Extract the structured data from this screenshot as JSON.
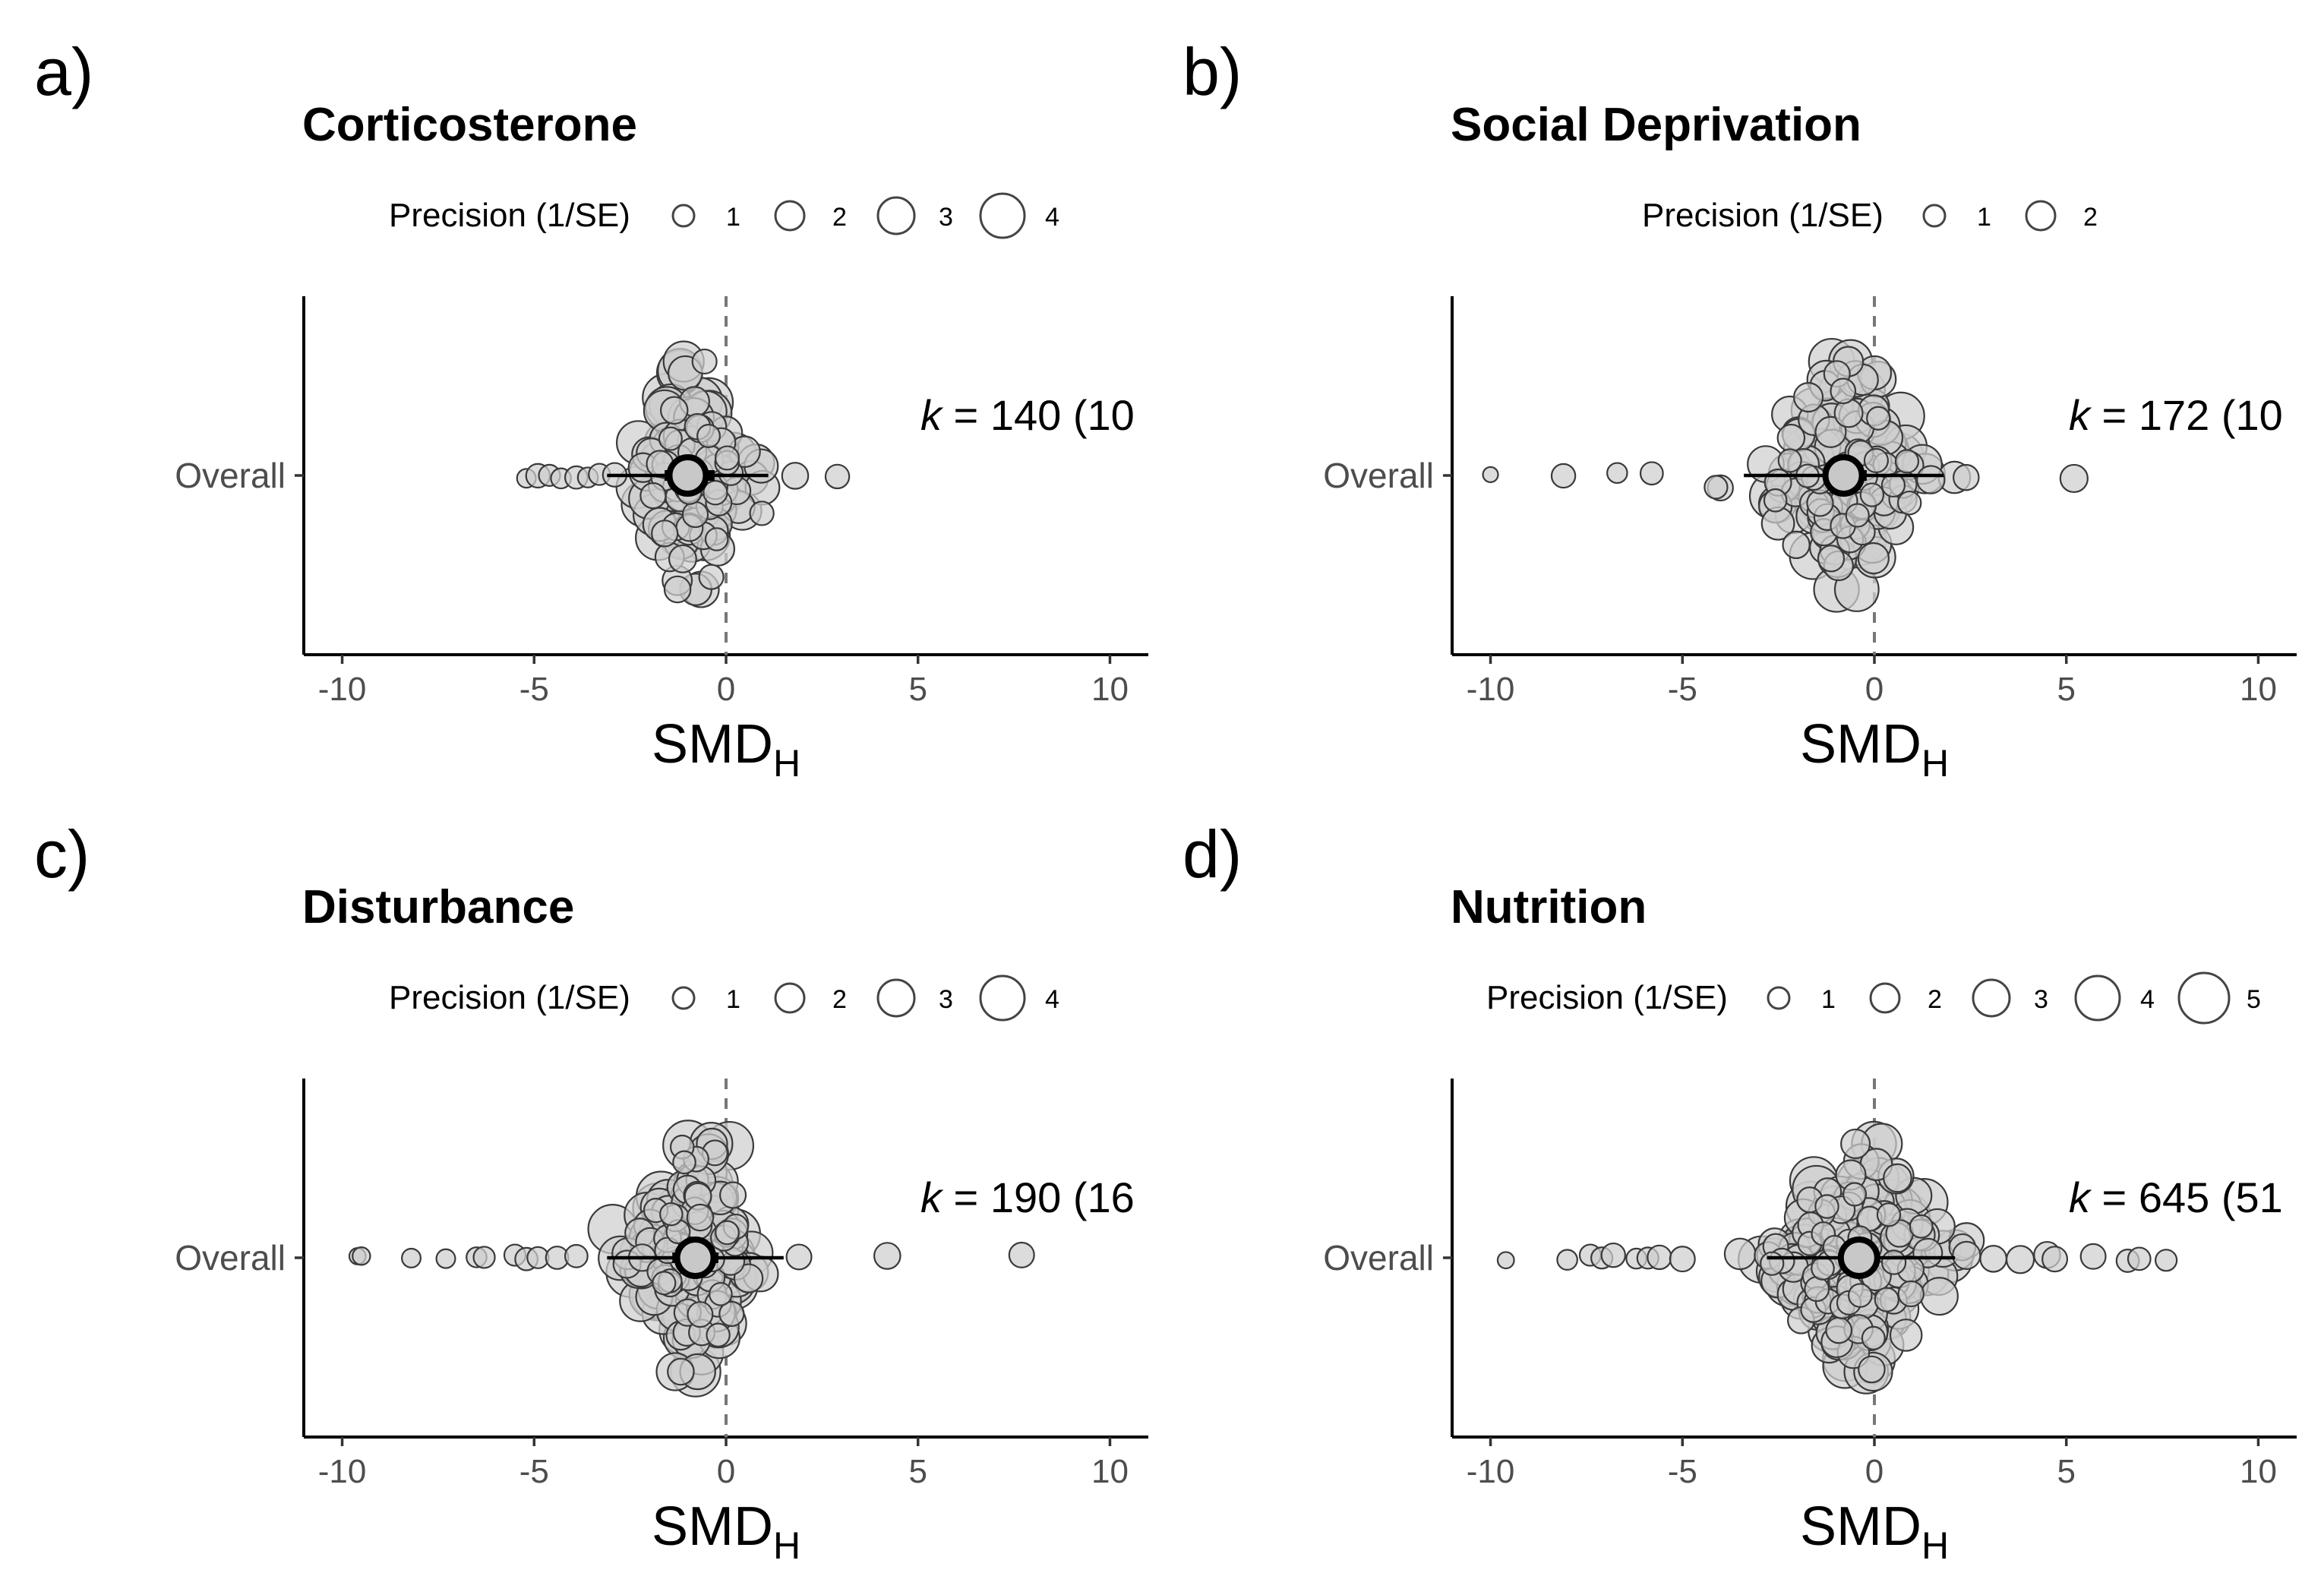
{
  "figure": {
    "ylabel_category": "Overall",
    "xaxis_title_main": "SMD",
    "xaxis_title_sub": "H",
    "legend_title": "Precision (1/SE)",
    "k_prefix": "k"
  },
  "chart_data": [
    {
      "id": "a",
      "type": "scatter",
      "panel_label": "a)",
      "title": "Corticosterone",
      "xlabel": "SMD_H",
      "xlim": [
        -11,
        11
      ],
      "xticks": [
        -10,
        -5,
        0,
        5,
        10
      ],
      "category": "Overall",
      "k_annotation": " = 140 (10",
      "legend_values": [
        "1",
        "2",
        "3",
        "4"
      ],
      "estimate": -1.0,
      "ci": [
        -1.6,
        -0.3
      ],
      "pi": [
        -3.1,
        1.1
      ],
      "n_effects": 140,
      "x_range": [
        -5.2,
        2.9
      ],
      "spread": 1.3,
      "outliers": [
        {
          "x": -5.2,
          "precision": 0.8
        },
        {
          "x": -4.9,
          "precision": 1.2
        },
        {
          "x": -4.6,
          "precision": 1.0
        },
        {
          "x": -4.3,
          "precision": 0.9
        },
        {
          "x": -3.9,
          "precision": 1.1
        },
        {
          "x": -3.6,
          "precision": 0.9
        },
        {
          "x": -3.3,
          "precision": 1.0
        },
        {
          "x": -2.9,
          "precision": 1.2
        },
        {
          "x": 1.8,
          "precision": 1.4
        },
        {
          "x": 2.9,
          "precision": 1.2
        }
      ]
    },
    {
      "id": "b",
      "type": "scatter",
      "panel_label": "b)",
      "title": "Social Deprivation",
      "xlabel": "SMD_H",
      "xlim": [
        -11,
        11
      ],
      "xticks": [
        -10,
        -5,
        0,
        5,
        10
      ],
      "category": "Overall",
      "k_annotation": " = 172 (10",
      "legend_values": [
        "1",
        "2"
      ],
      "estimate": -0.8,
      "ci": [
        -1.3,
        -0.2
      ],
      "pi": [
        -3.4,
        1.8
      ],
      "n_effects": 172,
      "x_range": [
        -10.0,
        5.2
      ],
      "spread": 1.8,
      "outliers": [
        {
          "x": -10.0,
          "precision": 0.5
        },
        {
          "x": -8.1,
          "precision": 1.2
        },
        {
          "x": -6.7,
          "precision": 0.9
        },
        {
          "x": -5.8,
          "precision": 1.1
        },
        {
          "x": 5.2,
          "precision": 1.5
        }
      ]
    },
    {
      "id": "c",
      "type": "scatter",
      "panel_label": "c)",
      "title": "Disturbance",
      "xlabel": "SMD_H",
      "xlim": [
        -11,
        11
      ],
      "xticks": [
        -10,
        -5,
        0,
        5,
        10
      ],
      "category": "Overall",
      "k_annotation": " = 190 (16",
      "legend_values": [
        "1",
        "2",
        "3",
        "4"
      ],
      "estimate": -0.8,
      "ci": [
        -1.4,
        -0.2
      ],
      "pi": [
        -3.1,
        1.5
      ],
      "n_effects": 190,
      "x_range": [
        -9.6,
        7.7
      ],
      "spread": 1.5,
      "outliers": [
        {
          "x": -9.6,
          "precision": 0.6
        },
        {
          "x": -9.5,
          "precision": 0.7
        },
        {
          "x": -8.2,
          "precision": 0.8
        },
        {
          "x": -7.3,
          "precision": 0.8
        },
        {
          "x": -6.5,
          "precision": 0.9
        },
        {
          "x": -6.3,
          "precision": 1.0
        },
        {
          "x": -5.5,
          "precision": 1.0
        },
        {
          "x": -5.2,
          "precision": 1.1
        },
        {
          "x": -4.9,
          "precision": 1.0
        },
        {
          "x": -4.4,
          "precision": 1.1
        },
        {
          "x": -3.9,
          "precision": 1.1
        },
        {
          "x": 1.9,
          "precision": 1.3
        },
        {
          "x": 4.2,
          "precision": 1.4
        },
        {
          "x": 7.7,
          "precision": 1.3
        }
      ]
    },
    {
      "id": "d",
      "type": "scatter",
      "panel_label": "d)",
      "title": "Nutrition",
      "xlabel": "SMD_H",
      "xlim": [
        -11,
        11
      ],
      "xticks": [
        -10,
        -5,
        0,
        5,
        10
      ],
      "category": "Overall",
      "k_annotation": " = 645 (51",
      "legend_values": [
        "1",
        "2",
        "3",
        "4",
        "5"
      ],
      "estimate": -0.4,
      "ci": [
        -0.7,
        -0.1
      ],
      "pi": [
        -2.8,
        2.1
      ],
      "n_effects": 645,
      "x_range": [
        -9.6,
        7.6
      ],
      "spread": 2.0,
      "outliers": [
        {
          "x": -9.6,
          "precision": 0.6
        },
        {
          "x": -8.0,
          "precision": 0.9
        },
        {
          "x": -7.4,
          "precision": 1.0
        },
        {
          "x": -7.1,
          "precision": 1.0
        },
        {
          "x": -6.8,
          "precision": 1.2
        },
        {
          "x": -6.2,
          "precision": 0.9
        },
        {
          "x": -5.9,
          "precision": 1.0
        },
        {
          "x": -5.6,
          "precision": 1.2
        },
        {
          "x": -5.0,
          "precision": 1.3
        },
        {
          "x": 2.4,
          "precision": 1.5
        },
        {
          "x": 3.1,
          "precision": 1.4
        },
        {
          "x": 3.8,
          "precision": 1.5
        },
        {
          "x": 4.5,
          "precision": 1.4
        },
        {
          "x": 4.7,
          "precision": 1.3
        },
        {
          "x": 5.7,
          "precision": 1.3
        },
        {
          "x": 6.6,
          "precision": 1.1
        },
        {
          "x": 6.9,
          "precision": 1.1
        },
        {
          "x": 7.6,
          "precision": 1.0
        }
      ]
    }
  ]
}
